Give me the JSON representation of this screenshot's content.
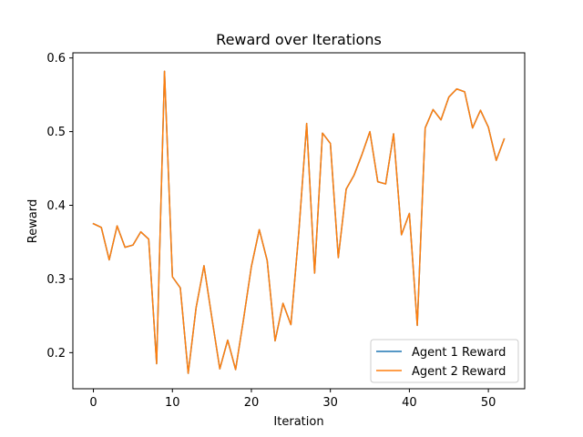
{
  "chart_data": {
    "type": "line",
    "title": "Reward over Iterations",
    "xlabel": "Iteration",
    "ylabel": "Reward",
    "xlim": [
      -2.6,
      54.6
    ],
    "ylim": [
      0.151,
      0.607
    ],
    "xticks": [
      0,
      10,
      20,
      30,
      40,
      50
    ],
    "yticks": [
      0.2,
      0.3,
      0.4,
      0.5,
      0.6
    ],
    "ytick_labels": [
      "0.2",
      "0.3",
      "0.4",
      "0.5",
      "0.6"
    ],
    "grid": false,
    "legend_position": "lower-right",
    "x": [
      0,
      1,
      2,
      3,
      4,
      5,
      6,
      7,
      8,
      9,
      10,
      11,
      12,
      13,
      14,
      15,
      16,
      17,
      18,
      19,
      20,
      21,
      22,
      23,
      24,
      25,
      26,
      27,
      28,
      29,
      30,
      31,
      32,
      33,
      34,
      35,
      36,
      37,
      38,
      39,
      40,
      41,
      42,
      43,
      44,
      45,
      46,
      47,
      48,
      49,
      50,
      51,
      52
    ],
    "series": [
      {
        "name": "Agent 1 Reward",
        "color": "#1f77b4",
        "values": [
          0.375,
          0.37,
          0.326,
          0.372,
          0.343,
          0.346,
          0.364,
          0.354,
          0.185,
          0.582,
          0.303,
          0.288,
          0.172,
          0.261,
          0.318,
          0.247,
          0.178,
          0.217,
          0.177,
          0.245,
          0.317,
          0.367,
          0.325,
          0.216,
          0.267,
          0.238,
          0.363,
          0.511,
          0.308,
          0.498,
          0.484,
          0.329,
          0.422,
          0.441,
          0.469,
          0.5,
          0.432,
          0.429,
          0.497,
          0.36,
          0.389,
          0.237,
          0.505,
          0.53,
          0.516,
          0.547,
          0.558,
          0.554,
          0.505,
          0.529,
          0.506,
          0.461,
          0.49
        ]
      },
      {
        "name": "Agent 2 Reward",
        "color": "#ff7f0e",
        "values": [
          0.375,
          0.37,
          0.326,
          0.372,
          0.343,
          0.346,
          0.364,
          0.354,
          0.185,
          0.582,
          0.303,
          0.288,
          0.172,
          0.261,
          0.318,
          0.247,
          0.178,
          0.217,
          0.177,
          0.245,
          0.317,
          0.367,
          0.325,
          0.216,
          0.267,
          0.238,
          0.363,
          0.511,
          0.308,
          0.498,
          0.484,
          0.329,
          0.422,
          0.441,
          0.469,
          0.5,
          0.432,
          0.429,
          0.497,
          0.36,
          0.389,
          0.237,
          0.505,
          0.53,
          0.516,
          0.547,
          0.558,
          0.554,
          0.505,
          0.529,
          0.506,
          0.461,
          0.49
        ]
      }
    ]
  }
}
